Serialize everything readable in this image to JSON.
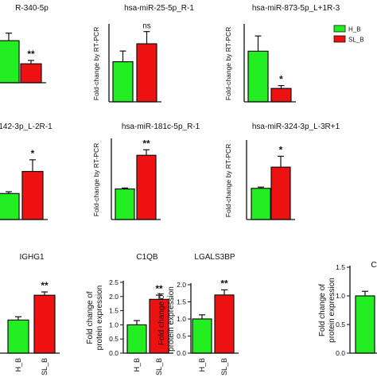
{
  "colors": {
    "h_b": "#22ee22",
    "sl_b": "#ee1111",
    "axis": "#111111"
  },
  "legend": [
    {
      "label": "H_B",
      "color": "#22ee22"
    },
    {
      "label": "SL_B",
      "color": "#ee1111"
    }
  ],
  "chart_data": [
    {
      "type": "bar",
      "title": "R-340-5p",
      "ylabel": "",
      "categories": [
        "H_B",
        "SL_B"
      ],
      "values": [
        1.0,
        0.45
      ],
      "errors": [
        0.18,
        0.08
      ],
      "significance": "**",
      "ylim": [
        0,
        1.4
      ],
      "ticks": [],
      "tick_labels": []
    },
    {
      "type": "bar",
      "title": "hsa-miR-25-5p_R-1",
      "ylabel": "Fold-change by RT-PCR",
      "categories": [
        "H_B",
        "SL_B"
      ],
      "values": [
        1.05,
        1.52
      ],
      "errors": [
        0.28,
        0.32
      ],
      "significance": "ns",
      "ylim": [
        0,
        2.0
      ],
      "ticks": [],
      "tick_labels": []
    },
    {
      "type": "bar",
      "title": "hsa-miR-873-5p_L+1R-3",
      "ylabel": "Fold-change by RT-PCR",
      "categories": [
        "H_B",
        "SL_B"
      ],
      "values": [
        1.06,
        0.28
      ],
      "errors": [
        0.32,
        0.06
      ],
      "significance": "*",
      "ylim": [
        0,
        1.6
      ],
      "ticks": [],
      "tick_labels": []
    },
    {
      "type": "bar",
      "title": "142-3p_L-2R-1",
      "ylabel": "",
      "categories": [
        "H_B",
        "SL_B"
      ],
      "values": [
        1.0,
        1.85
      ],
      "errors": [
        0.07,
        0.45
      ],
      "significance": "*",
      "ylim": [
        0,
        3.0
      ],
      "ticks": [],
      "tick_labels": []
    },
    {
      "type": "bar",
      "title": "hsa-miR-181c-5p_R-1",
      "ylabel": "Fold-change by RT-PCR",
      "categories": [
        "H_B",
        "SL_B"
      ],
      "values": [
        1.0,
        2.1
      ],
      "errors": [
        0.03,
        0.18
      ],
      "significance": "**",
      "ylim": [
        0,
        2.6
      ],
      "ticks": [],
      "tick_labels": []
    },
    {
      "type": "bar",
      "title": "hsa-miR-324-3p_L-3R+1",
      "ylabel": "Fold-change by RT-PCR",
      "categories": [
        "H_B",
        "SL_B"
      ],
      "values": [
        1.0,
        1.68
      ],
      "errors": [
        0.04,
        0.35
      ],
      "significance": "*",
      "ylim": [
        0,
        2.5
      ],
      "ticks": [],
      "tick_labels": []
    },
    {
      "type": "bar",
      "title": "IGHG1",
      "ylabel": "",
      "categories": [
        "H_B",
        "SL_B"
      ],
      "values": [
        1.0,
        1.75
      ],
      "errors": [
        0.1,
        0.1
      ],
      "significance": "**",
      "ylim": [
        0,
        2.5
      ],
      "ticks": [],
      "tick_labels": []
    },
    {
      "type": "bar",
      "title": "C1QB",
      "ylabel": "Fold change of protein expression",
      "categories": [
        "H_B",
        "SL_B"
      ],
      "values": [
        1.0,
        1.9
      ],
      "errors": [
        0.15,
        0.15
      ],
      "significance": "**",
      "ylim": [
        0,
        2.5
      ],
      "ticks": [
        0.0,
        0.5,
        1.0,
        1.5,
        2.0,
        2.5
      ],
      "tick_labels": [
        "0.0",
        "0.5",
        "1.0",
        "1.5",
        "2.0",
        "2.5"
      ]
    },
    {
      "type": "bar",
      "title": "LGALS3BP",
      "ylabel": "Fold change of protein expression",
      "categories": [
        "H_B",
        "SL_B"
      ],
      "values": [
        1.0,
        1.7
      ],
      "errors": [
        0.12,
        0.15
      ],
      "significance": "**",
      "ylim": [
        0,
        2.0
      ],
      "ticks": [
        0.0,
        0.5,
        1.0,
        1.5,
        2.0
      ],
      "tick_labels": [
        "0.0",
        "0.5",
        "1.0",
        "1.5",
        "2.0"
      ]
    },
    {
      "type": "bar",
      "title": "C",
      "ylabel": "Fold change of protein expression",
      "categories": [
        "H_B"
      ],
      "values": [
        1.0
      ],
      "errors": [
        0.08
      ],
      "significance": "",
      "ylim": [
        0,
        1.5
      ],
      "ticks": [
        0.0,
        0.5,
        1.0,
        1.5
      ],
      "tick_labels": [
        "0.0",
        "0.5",
        "1.0",
        "1.5"
      ]
    }
  ]
}
